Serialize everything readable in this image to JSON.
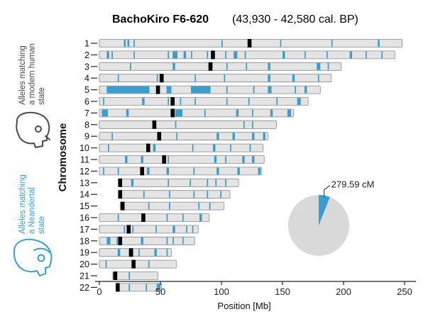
{
  "colors": {
    "neanderthal": "#3a9dd0",
    "modern": "#4a4a4a",
    "bar_fill": "#e4e4e4",
    "bar_stroke": "#8a8a8a",
    "centromere": "#000000",
    "pie_rest": "#d9d9d9"
  },
  "chart_data": {
    "type": "bar",
    "title": "BachoKiro F6-620",
    "subtitle": "(43,930 - 42,580 cal. BP)",
    "xlabel": "Position [Mb]",
    "ylabel": "Chromosome",
    "xlim": [
      0,
      250
    ],
    "xticks": [
      0,
      50,
      100,
      150,
      200,
      250
    ],
    "legend": {
      "modern": "Alleles matching a modern human state",
      "neanderthal": "Alleles matching a Neandertal state",
      "position": "left"
    },
    "pie": {
      "label": "279.59 cM",
      "slice_fraction": 0.06
    },
    "chromosomes": [
      {
        "name": "1",
        "start": 0,
        "end": 248,
        "centromere": 123,
        "segments": [
          [
            20,
            21.5
          ],
          [
            23,
            24.5
          ],
          [
            28,
            29
          ],
          [
            100,
            101
          ],
          [
            148,
            149
          ],
          [
            190,
            191
          ],
          [
            228,
            229.5
          ]
        ]
      },
      {
        "name": "2",
        "start": 0,
        "end": 242,
        "centromere": 93,
        "segments": [
          [
            6,
            8
          ],
          [
            10,
            11
          ],
          [
            28,
            29
          ],
          [
            56,
            57
          ],
          [
            60,
            64
          ],
          [
            69,
            71
          ],
          [
            75,
            76
          ],
          [
            88,
            89
          ],
          [
            103,
            104
          ],
          [
            110,
            113
          ],
          [
            119,
            120
          ],
          [
            150,
            152
          ],
          [
            168,
            169
          ],
          [
            186,
            187
          ],
          [
            205,
            207
          ],
          [
            218,
            219
          ],
          [
            231,
            232
          ]
        ]
      },
      {
        "name": "3",
        "start": 0,
        "end": 198,
        "centromere": 91,
        "segments": [
          [
            25,
            26
          ],
          [
            60,
            62
          ],
          [
            104,
            105
          ],
          [
            120,
            121
          ],
          [
            138,
            140
          ],
          [
            178,
            181
          ],
          [
            187,
            188
          ]
        ]
      },
      {
        "name": "4",
        "start": 0,
        "end": 190,
        "centromere": 51,
        "segments": [
          [
            15,
            16
          ],
          [
            47,
            48
          ],
          [
            78,
            79
          ],
          [
            102,
            103
          ],
          [
            138,
            140
          ],
          [
            158,
            160
          ],
          [
            179,
            180
          ]
        ]
      },
      {
        "name": "5",
        "start": 0,
        "end": 181,
        "centromere": 48,
        "segments": [
          [
            6,
            41
          ],
          [
            55,
            59
          ],
          [
            75,
            91
          ],
          [
            104,
            105
          ],
          [
            126,
            127
          ],
          [
            138,
            141
          ],
          [
            160,
            161
          ],
          [
            168,
            170
          ]
        ]
      },
      {
        "name": "6",
        "start": 0,
        "end": 171,
        "centromere": 60,
        "segments": [
          [
            3,
            4
          ],
          [
            35,
            37
          ],
          [
            56,
            57
          ],
          [
            66,
            67
          ],
          [
            78,
            79
          ],
          [
            104,
            105
          ],
          [
            122,
            123
          ],
          [
            145,
            146
          ],
          [
            162,
            165
          ]
        ]
      },
      {
        "name": "7",
        "start": 0,
        "end": 159,
        "centromere": 60,
        "segments": [
          [
            2,
            7
          ],
          [
            22,
            24
          ],
          [
            62,
            68
          ],
          [
            86,
            87
          ],
          [
            112,
            114
          ],
          [
            125,
            126
          ],
          [
            140,
            142
          ],
          [
            154,
            157
          ]
        ]
      },
      {
        "name": "8",
        "start": 0,
        "end": 145,
        "centromere": 45,
        "segments": [
          [
            62,
            63
          ],
          [
            118,
            119
          ],
          [
            125,
            126
          ]
        ]
      },
      {
        "name": "9",
        "start": 0,
        "end": 138,
        "centromere": 49,
        "segments": [
          [
            10,
            11
          ],
          [
            63,
            64
          ],
          [
            96,
            98
          ],
          [
            109,
            111
          ],
          [
            125,
            127
          ],
          [
            134,
            136
          ]
        ]
      },
      {
        "name": "10",
        "start": 0,
        "end": 134,
        "centromere": 40,
        "segments": [
          [
            7,
            8
          ],
          [
            44,
            46
          ],
          [
            76,
            77
          ],
          [
            93,
            95
          ],
          [
            107,
            108
          ],
          [
            123,
            124
          ]
        ]
      },
      {
        "name": "11",
        "start": 0,
        "end": 135,
        "centromere": 53,
        "segments": [
          [
            21,
            23
          ],
          [
            34,
            36
          ],
          [
            56,
            57
          ],
          [
            94,
            96
          ],
          [
            103,
            104
          ],
          [
            117,
            119
          ],
          [
            125,
            127
          ]
        ]
      },
      {
        "name": "12",
        "start": 0,
        "end": 133,
        "centromere": 35,
        "segments": [
          [
            3,
            4
          ],
          [
            15,
            16
          ],
          [
            39,
            41
          ],
          [
            55,
            57
          ],
          [
            77,
            78
          ],
          [
            96,
            98
          ],
          [
            113,
            115
          ],
          [
            130,
            132
          ]
        ]
      },
      {
        "name": "13",
        "start": 16,
        "end": 114,
        "centromere": 17,
        "segments": [
          [
            26,
            28
          ],
          [
            56,
            57
          ],
          [
            74,
            75
          ],
          [
            88,
            89
          ],
          [
            95,
            96
          ],
          [
            103,
            104
          ]
        ]
      },
      {
        "name": "14",
        "start": 16,
        "end": 107,
        "centromere": 17,
        "segments": [
          [
            36,
            37
          ],
          [
            57,
            58
          ],
          [
            77,
            78
          ],
          [
            88,
            89
          ],
          [
            99,
            100
          ]
        ]
      },
      {
        "name": "15",
        "start": 17,
        "end": 102,
        "centromere": 19,
        "segments": [
          [
            40,
            41
          ],
          [
            57,
            58
          ],
          [
            81,
            82
          ],
          [
            90,
            91
          ]
        ]
      },
      {
        "name": "16",
        "start": 0,
        "end": 90,
        "centromere": 36,
        "segments": [
          [
            15,
            16
          ],
          [
            55,
            56
          ],
          [
            68,
            69
          ],
          [
            82,
            84
          ]
        ]
      },
      {
        "name": "17",
        "start": 0,
        "end": 81,
        "centromere": 24,
        "segments": [
          [
            20,
            21
          ],
          [
            27,
            28
          ],
          [
            46,
            47
          ],
          [
            60,
            62
          ],
          [
            71,
            72
          ],
          [
            76,
            77
          ]
        ]
      },
      {
        "name": "18",
        "start": 0,
        "end": 78,
        "centromere": 17,
        "segments": [
          [
            6,
            9
          ],
          [
            14,
            15
          ],
          [
            34,
            36
          ],
          [
            55,
            56
          ],
          [
            60,
            61
          ],
          [
            68,
            69
          ]
        ]
      },
      {
        "name": "19",
        "start": 0,
        "end": 59,
        "centromere": 26,
        "segments": [
          [
            15,
            17
          ],
          [
            24,
            25
          ],
          [
            32,
            33
          ],
          [
            45,
            47
          ],
          [
            55,
            56
          ]
        ]
      },
      {
        "name": "20",
        "start": 0,
        "end": 63,
        "centromere": 28,
        "segments": [
          [
            5,
            6
          ],
          [
            40,
            41
          ]
        ]
      },
      {
        "name": "21",
        "start": 11,
        "end": 48,
        "centromere": 13,
        "segments": [
          [
            24,
            25
          ]
        ]
      },
      {
        "name": "22",
        "start": 14,
        "end": 51,
        "centromere": 15,
        "segments": [
          [
            24,
            25
          ],
          [
            38,
            39
          ],
          [
            47,
            50
          ]
        ]
      }
    ]
  }
}
